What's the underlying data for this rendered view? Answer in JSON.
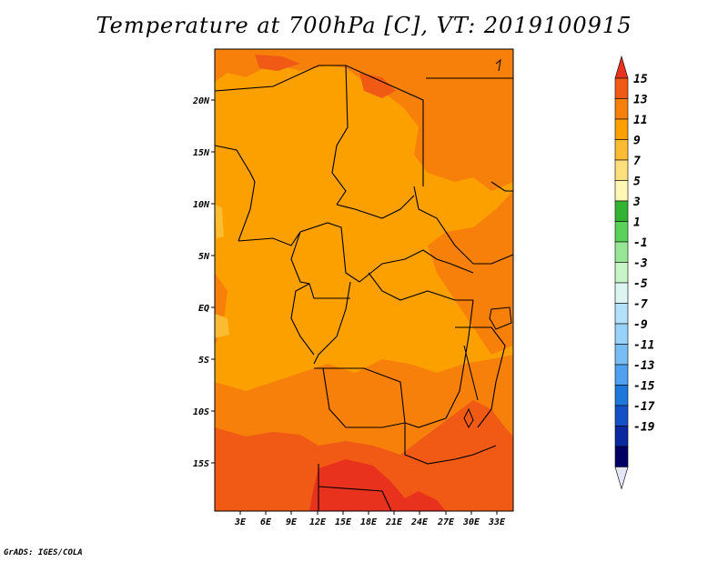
{
  "title": "Temperature at 700hPa [C], VT: 2019100915",
  "credit": "GrADS: IGES/COLA",
  "map": {
    "lat_labels": [
      "20N",
      "15N",
      "10N",
      "5N",
      "EQ",
      "5S",
      "10S",
      "15S"
    ],
    "lon_labels": [
      "3E",
      "6E",
      "9E",
      "12E",
      "15E",
      "18E",
      "21E",
      "24E",
      "27E",
      "30E",
      "33E"
    ]
  },
  "colorbar": {
    "labels": [
      "15",
      "13",
      "11",
      "9",
      "7",
      "5",
      "3",
      "1",
      "-1",
      "-3",
      "-5",
      "-7",
      "-9",
      "-11",
      "-13",
      "-15",
      "-17",
      "-19"
    ],
    "colors": [
      "#e8321e",
      "#f05a14",
      "#f7800a",
      "#fca000",
      "#fbbb32",
      "#fddf7c",
      "#fff7b4",
      "#32b432",
      "#5ad25a",
      "#96e696",
      "#c8f5c8",
      "#dcf5f0",
      "#b4e1fa",
      "#96d2fa",
      "#78bef5",
      "#50a0f0",
      "#1e78dc",
      "#1450c8",
      "#0a28a0",
      "#000064",
      "#e6e6fa"
    ]
  }
}
